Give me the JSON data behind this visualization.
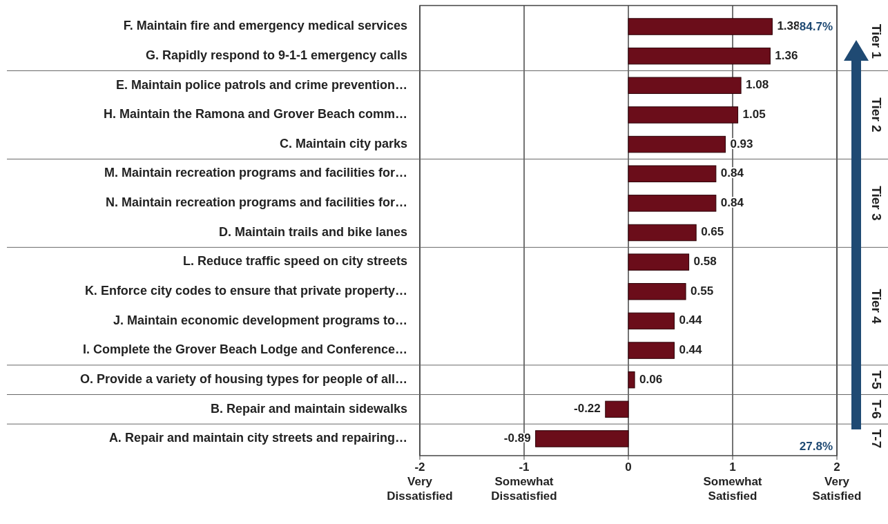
{
  "chart_data": {
    "type": "bar",
    "orientation": "horizontal",
    "categories": [
      "F. Maintain fire and emergency medical services",
      "G. Rapidly respond to 9-1-1 emergency calls",
      "E. Maintain police patrols and crime prevention…",
      "H. Maintain the Ramona and Grover Beach comm…",
      "C. Maintain city parks",
      "M. Maintain recreation programs and facilities for…",
      "N. Maintain recreation programs and facilities for…",
      "D. Maintain trails and bike lanes",
      "L. Reduce traffic speed on city streets",
      "K. Enforce city codes to ensure that private property…",
      "J. Maintain economic development programs to…",
      "I. Complete the Grover Beach Lodge and Conference…",
      "O. Provide a variety of housing types for people of all…",
      "B. Repair and maintain sidewalks",
      "A. Repair and maintain city streets and repairing…"
    ],
    "series": [
      {
        "name": "Tier 1",
        "color": "#6b0d1a",
        "values": [
          1.38,
          1.36,
          null,
          null,
          null,
          null,
          null,
          null,
          null,
          null,
          null,
          null,
          null,
          null,
          null
        ]
      },
      {
        "name": "Tier 2",
        "color": "#6b0d1a",
        "values": [
          null,
          null,
          1.08,
          1.05,
          0.93,
          null,
          null,
          null,
          null,
          null,
          null,
          null,
          null,
          null,
          null
        ]
      },
      {
        "name": "Tier 3",
        "color": "#6b0d1a",
        "values": [
          null,
          null,
          null,
          null,
          null,
          0.84,
          0.84,
          0.65,
          null,
          null,
          null,
          null,
          null,
          null,
          null
        ]
      },
      {
        "name": "Tier 4",
        "color": "#6b0d1a",
        "values": [
          null,
          null,
          null,
          null,
          null,
          null,
          null,
          null,
          0.58,
          0.55,
          0.44,
          0.44,
          null,
          null,
          null
        ]
      },
      {
        "name": "T-5",
        "color": "#6b0d1a",
        "values": [
          null,
          null,
          null,
          null,
          null,
          null,
          null,
          null,
          null,
          null,
          null,
          null,
          0.06,
          null,
          null
        ]
      },
      {
        "name": "T-6",
        "color": "#6b0d1a",
        "values": [
          null,
          null,
          null,
          null,
          null,
          null,
          null,
          null,
          null,
          null,
          null,
          null,
          null,
          -0.22,
          null
        ]
      },
      {
        "name": "T-7",
        "color": "#6b0d1a",
        "values": [
          null,
          null,
          null,
          null,
          null,
          null,
          null,
          null,
          null,
          null,
          null,
          null,
          null,
          null,
          -0.89
        ]
      }
    ],
    "data_labels": true,
    "xlim": [
      -2,
      2
    ],
    "xticks": [
      {
        "value": -2,
        "label": "-2\nVery\nDissatisfied"
      },
      {
        "value": -1,
        "label": "-1\nSomewhat\nDissatisfied"
      },
      0,
      {
        "value": 1,
        "label": "1\nSomewhat\nSatisfied"
      },
      {
        "value": 2,
        "label": "2\nVery\nSatisfied"
      }
    ],
    "grid": "x",
    "annotations": [
      "84.7%",
      "27.8%"
    ]
  }
}
